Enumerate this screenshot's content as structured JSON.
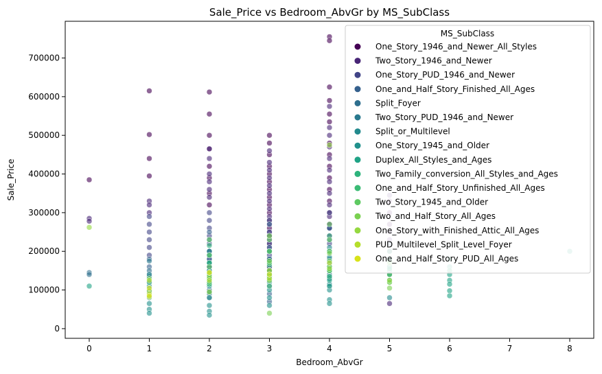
{
  "chart_data": {
    "type": "scatter",
    "title": "Sale_Price vs Bedroom_AbvGr by MS_SubClass",
    "xlabel": "Bedroom_AbvGr",
    "ylabel": "Sale_Price",
    "xlim": [
      -0.4,
      8.4
    ],
    "ylim": [
      -25000,
      795000
    ],
    "xticks": [
      0,
      1,
      2,
      3,
      4,
      5,
      6,
      7,
      8
    ],
    "yticks": [
      0,
      100000,
      200000,
      300000,
      400000,
      500000,
      600000,
      700000
    ],
    "grid": false,
    "legend": {
      "title": "MS_SubClass",
      "placement": "upper right"
    },
    "series": [
      {
        "name": "One_Story_1946_and_Newer_All_Styles",
        "color": "#440154",
        "points": [
          [
            0,
            385000
          ],
          [
            1,
            615000
          ],
          [
            1,
            502000
          ],
          [
            1,
            440000
          ],
          [
            1,
            395000
          ],
          [
            2,
            612000
          ],
          [
            2,
            555000
          ],
          [
            2,
            500000
          ],
          [
            2,
            465000
          ],
          [
            2,
            420000
          ],
          [
            2,
            390000
          ],
          [
            2,
            350000
          ],
          [
            2,
            320000
          ],
          [
            3,
            500000
          ],
          [
            3,
            480000
          ],
          [
            3,
            450000
          ],
          [
            3,
            420000
          ],
          [
            3,
            400000
          ],
          [
            3,
            380000
          ],
          [
            3,
            360000
          ],
          [
            3,
            340000
          ],
          [
            3,
            320000
          ],
          [
            3,
            300000
          ],
          [
            3,
            280000
          ],
          [
            3,
            260000
          ],
          [
            3,
            240000
          ],
          [
            3,
            220000
          ],
          [
            3,
            200000
          ],
          [
            3,
            180000
          ],
          [
            3,
            160000
          ],
          [
            4,
            755000
          ],
          [
            4,
            745000
          ],
          [
            4,
            625000
          ],
          [
            4,
            590000
          ],
          [
            4,
            555000
          ],
          [
            4,
            535000
          ],
          [
            4,
            480000
          ],
          [
            4,
            450000
          ],
          [
            4,
            420000
          ],
          [
            4,
            390000
          ],
          [
            4,
            360000
          ],
          [
            4,
            330000
          ],
          [
            4,
            300000
          ],
          [
            4,
            270000
          ],
          [
            5,
            330000
          ],
          [
            5,
            300000
          ],
          [
            5,
            270000
          ]
        ]
      },
      {
        "name": "Two_Story_1946_and_Newer",
        "color": "#482576",
        "points": [
          [
            0,
            285000
          ],
          [
            0,
            278000
          ],
          [
            1,
            330000
          ],
          [
            1,
            320000
          ],
          [
            1,
            300000
          ],
          [
            2,
            465000
          ],
          [
            2,
            440000
          ],
          [
            2,
            400000
          ],
          [
            2,
            380000
          ],
          [
            2,
            360000
          ],
          [
            2,
            340000
          ],
          [
            3,
            460000
          ],
          [
            3,
            430000
          ],
          [
            3,
            410000
          ],
          [
            3,
            390000
          ],
          [
            3,
            370000
          ],
          [
            3,
            350000
          ],
          [
            3,
            330000
          ],
          [
            3,
            310000
          ],
          [
            3,
            290000
          ],
          [
            3,
            270000
          ],
          [
            3,
            250000
          ],
          [
            3,
            230000
          ],
          [
            3,
            210000
          ],
          [
            4,
            575000
          ],
          [
            4,
            520000
          ],
          [
            4,
            500000
          ],
          [
            4,
            470000
          ],
          [
            4,
            440000
          ],
          [
            4,
            410000
          ],
          [
            4,
            380000
          ],
          [
            4,
            350000
          ],
          [
            4,
            320000
          ],
          [
            4,
            290000
          ],
          [
            4,
            260000
          ],
          [
            4,
            240000
          ],
          [
            5,
            345000
          ],
          [
            5,
            250000
          ],
          [
            5,
            230000
          ],
          [
            5,
            200000
          ],
          [
            5,
            65000
          ]
        ]
      },
      {
        "name": "One_Story_PUD_1946_and_Newer",
        "color": "#414487",
        "points": [
          [
            1,
            290000
          ],
          [
            1,
            270000
          ],
          [
            1,
            250000
          ],
          [
            1,
            230000
          ],
          [
            1,
            210000
          ],
          [
            1,
            190000
          ],
          [
            2,
            300000
          ],
          [
            2,
            280000
          ],
          [
            2,
            260000
          ],
          [
            2,
            240000
          ],
          [
            2,
            220000
          ],
          [
            2,
            200000
          ],
          [
            2,
            180000
          ],
          [
            2,
            160000
          ],
          [
            3,
            280000
          ],
          [
            3,
            250000
          ],
          [
            3,
            220000
          ],
          [
            3,
            190000
          ],
          [
            4,
            300000
          ],
          [
            4,
            260000
          ],
          [
            4,
            220000
          ]
        ]
      },
      {
        "name": "One_and_Half_Story_Finished_All_Ages",
        "color": "#35608d",
        "points": [
          [
            1,
            180000
          ],
          [
            1,
            160000
          ],
          [
            1,
            140000
          ],
          [
            1,
            120000
          ],
          [
            2,
            250000
          ],
          [
            2,
            230000
          ],
          [
            2,
            200000
          ],
          [
            2,
            180000
          ],
          [
            2,
            160000
          ],
          [
            2,
            140000
          ],
          [
            2,
            120000
          ],
          [
            2,
            100000
          ],
          [
            2,
            80000
          ],
          [
            3,
            270000
          ],
          [
            3,
            240000
          ],
          [
            3,
            210000
          ],
          [
            3,
            180000
          ],
          [
            3,
            150000
          ],
          [
            3,
            130000
          ],
          [
            3,
            110000
          ],
          [
            3,
            90000
          ],
          [
            3,
            70000
          ],
          [
            4,
            260000
          ],
          [
            4,
            230000
          ],
          [
            4,
            200000
          ],
          [
            4,
            170000
          ],
          [
            4,
            150000
          ],
          [
            4,
            130000
          ],
          [
            4,
            110000
          ],
          [
            5,
            220000
          ],
          [
            5,
            180000
          ],
          [
            5,
            160000
          ],
          [
            5,
            140000
          ]
        ]
      },
      {
        "name": "Split_Foyer",
        "color": "#2e6f8e",
        "points": [
          [
            0,
            145000
          ],
          [
            0,
            140000
          ],
          [
            1,
            150000
          ],
          [
            1,
            135000
          ],
          [
            2,
            170000
          ],
          [
            2,
            150000
          ],
          [
            2,
            130000
          ],
          [
            3,
            180000
          ],
          [
            3,
            160000
          ],
          [
            3,
            140000
          ],
          [
            4,
            160000
          ],
          [
            4,
            140000
          ]
        ]
      },
      {
        "name": "Two_Story_PUD_1946_and_Newer",
        "color": "#29798e",
        "points": [
          [
            1,
            175000
          ],
          [
            1,
            100000
          ],
          [
            2,
            190000
          ],
          [
            2,
            150000
          ],
          [
            2,
            120000
          ],
          [
            2,
            90000
          ],
          [
            3,
            170000
          ],
          [
            3,
            130000
          ],
          [
            4,
            180000
          ]
        ]
      },
      {
        "name": "Split_or_Multilevel",
        "color": "#238a8d",
        "points": [
          [
            1,
            140000
          ],
          [
            2,
            200000
          ],
          [
            2,
            170000
          ],
          [
            2,
            140000
          ],
          [
            3,
            200000
          ],
          [
            3,
            175000
          ],
          [
            3,
            150000
          ],
          [
            3,
            125000
          ],
          [
            4,
            210000
          ],
          [
            4,
            185000
          ],
          [
            4,
            160000
          ],
          [
            4,
            135000
          ],
          [
            4,
            115000
          ],
          [
            5,
            150000
          ],
          [
            5,
            80000
          ]
        ]
      },
      {
        "name": "One_Story_1945_and_Older",
        "color": "#21918c",
        "points": [
          [
            1,
            110000
          ],
          [
            1,
            95000
          ],
          [
            1,
            80000
          ],
          [
            1,
            65000
          ],
          [
            1,
            50000
          ],
          [
            1,
            40000
          ],
          [
            2,
            190000
          ],
          [
            2,
            170000
          ],
          [
            2,
            150000
          ],
          [
            2,
            130000
          ],
          [
            2,
            110000
          ],
          [
            2,
            95000
          ],
          [
            2,
            80000
          ],
          [
            2,
            60000
          ],
          [
            2,
            45000
          ],
          [
            2,
            35000
          ],
          [
            3,
            150000
          ],
          [
            3,
            120000
          ],
          [
            3,
            100000
          ],
          [
            3,
            80000
          ],
          [
            3,
            60000
          ],
          [
            4,
            130000
          ],
          [
            4,
            100000
          ],
          [
            4,
            75000
          ],
          [
            4,
            65000
          ]
        ]
      },
      {
        "name": "Duplex_All_Styles_and_Ages",
        "color": "#20a386",
        "points": [
          [
            0,
            110000
          ],
          [
            2,
            140000
          ],
          [
            2,
            115000
          ],
          [
            3,
            140000
          ],
          [
            3,
            125000
          ],
          [
            4,
            150000
          ],
          [
            4,
            125000
          ],
          [
            4,
            110000
          ],
          [
            5,
            180000
          ],
          [
            5,
            160000
          ],
          [
            5,
            140000
          ],
          [
            5,
            125000
          ],
          [
            6,
            160000
          ],
          [
            6,
            140000
          ],
          [
            6,
            125000
          ],
          [
            6,
            115000
          ],
          [
            6,
            98000
          ],
          [
            6,
            85000
          ],
          [
            8,
            200000
          ]
        ]
      },
      {
        "name": "Two_Family_conversion_All_Styles_and_Ages",
        "color": "#2eb37c",
        "points": [
          [
            1,
            120000
          ],
          [
            2,
            215000
          ],
          [
            2,
            170000
          ],
          [
            2,
            130000
          ],
          [
            3,
            200000
          ],
          [
            3,
            165000
          ],
          [
            3,
            130000
          ],
          [
            4,
            240000
          ],
          [
            4,
            200000
          ],
          [
            4,
            160000
          ],
          [
            4,
            135000
          ],
          [
            5,
            200000
          ],
          [
            5,
            175000
          ],
          [
            5,
            155000
          ],
          [
            6,
            180000
          ],
          [
            6,
            150000
          ]
        ]
      },
      {
        "name": "One_and_Half_Story_Unfinished_All_Ages",
        "color": "#3bbb75",
        "points": [
          [
            2,
            130000
          ],
          [
            2,
            115000
          ],
          [
            3,
            135000
          ],
          [
            3,
            110000
          ],
          [
            4,
            150000
          ]
        ]
      },
      {
        "name": "Two_Story_1945_and_Older",
        "color": "#5ec962",
        "points": [
          [
            1,
            130000
          ],
          [
            2,
            230000
          ],
          [
            2,
            190000
          ],
          [
            2,
            160000
          ],
          [
            2,
            120000
          ],
          [
            3,
            230000
          ],
          [
            3,
            200000
          ],
          [
            3,
            170000
          ],
          [
            3,
            140000
          ],
          [
            4,
            270000
          ],
          [
            4,
            230000
          ],
          [
            4,
            200000
          ],
          [
            4,
            175000
          ],
          [
            4,
            150000
          ],
          [
            5,
            140000
          ],
          [
            5,
            120000
          ]
        ]
      },
      {
        "name": "Two_and_Half_Story_All_Ages",
        "color": "#7ad151",
        "points": [
          [
            3,
            240000
          ],
          [
            3,
            175000
          ],
          [
            3,
            40000
          ],
          [
            4,
            195000
          ],
          [
            4,
            160000
          ],
          [
            5,
            170000
          ],
          [
            5,
            120000
          ],
          [
            5,
            105000
          ]
        ]
      },
      {
        "name": "One_Story_with_Finished_Attic_All_Ages",
        "color": "#95d840",
        "points": [
          [
            0,
            262000
          ],
          [
            1,
            98000
          ],
          [
            2,
            135000
          ],
          [
            2,
            95000
          ],
          [
            3,
            125000
          ],
          [
            4,
            475000
          ],
          [
            4,
            155000
          ],
          [
            5,
            125000
          ]
        ]
      },
      {
        "name": "PUD_Multilevel_Split_Level_Foyer",
        "color": "#b5de2b",
        "points": [
          [
            1,
            125000
          ],
          [
            1,
            90000
          ],
          [
            1,
            82000
          ],
          [
            2,
            145000
          ],
          [
            2,
            125000
          ],
          [
            3,
            150000
          ],
          [
            3,
            130000
          ],
          [
            4,
            170000
          ]
        ]
      },
      {
        "name": "One_and_Half_Story_PUD_All_Ages",
        "color": "#d8e219",
        "points": [
          [
            1,
            105000
          ],
          [
            1,
            85000
          ],
          [
            2,
            145000
          ],
          [
            3,
            140000
          ]
        ]
      }
    ]
  }
}
